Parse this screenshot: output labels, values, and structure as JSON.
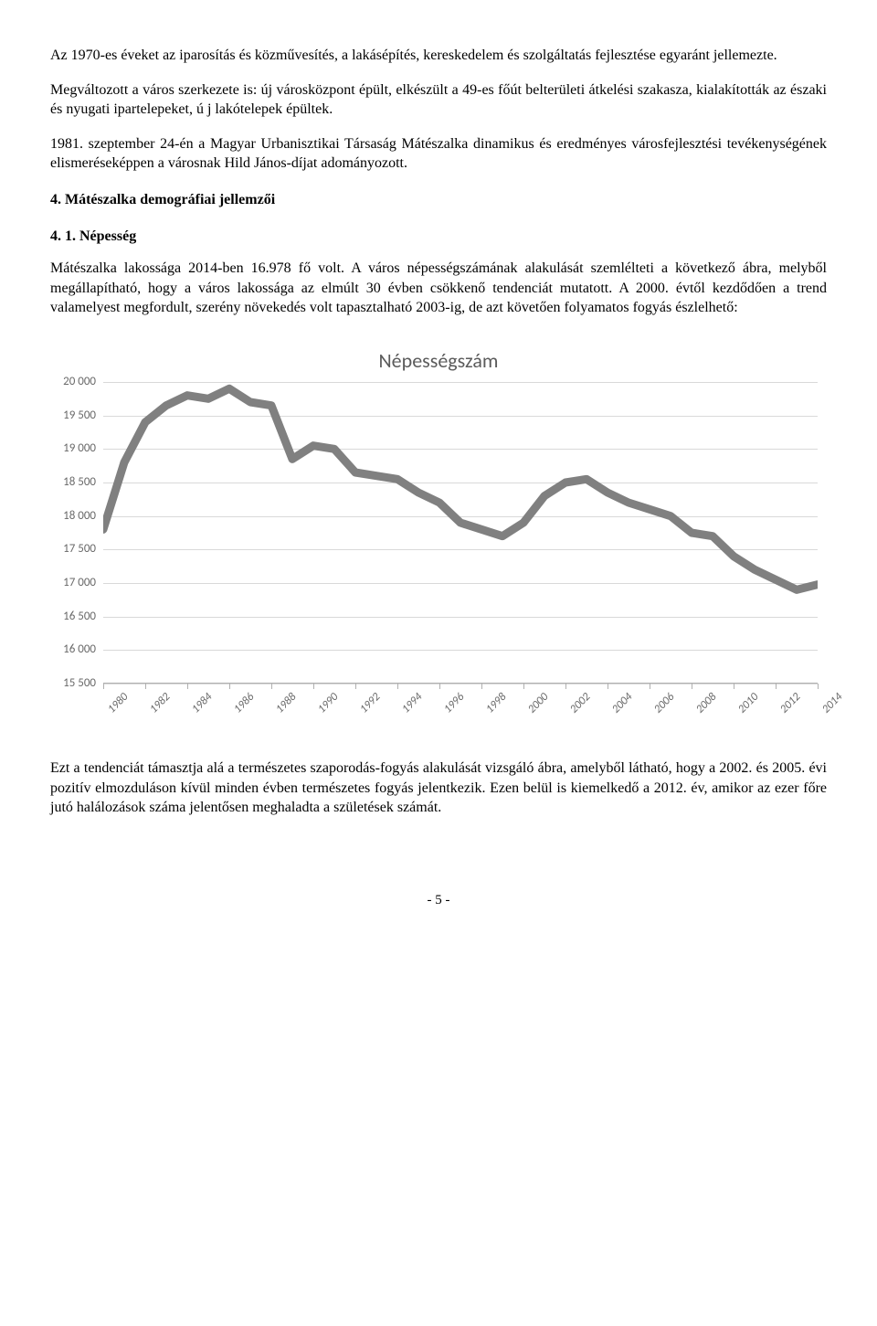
{
  "para1": "Az 1970-es éveket az iparosítás és közművesítés, a lakásépítés, kereskedelem és szolgáltatás fejlesztése egyaránt jellemezte.",
  "para2": "Megváltozott a város szerkezete is: új városközpont épült, elkészült a 49-es főút belterületi átkelési szakasza, kialakították az északi és nyugati ipartelepeket, ú j lakótelepek épültek.",
  "para3": "1981. szeptember 24-én a Magyar Urbanisztikai Társaság Mátészalka dinamikus és eredményes városfejlesztési tevékenységének elismeréseképpen a városnak Hild János-díjat adományozott.",
  "heading1": "4. Mátészalka demográfiai jellemzői",
  "heading2": "4. 1. Népesség",
  "para4": "Mátészalka lakossága 2014-ben 16.978 fő volt. A város népességszámának alakulását szemlélteti a következő ábra, melyből megállapítható, hogy a város lakossága az elmúlt 30 évben csökkenő tendenciát mutatott. A 2000. évtől kezdődően a trend valamelyest megfordult, szerény növekedés volt tapasztalható 2003-ig, de azt követően folyamatos fogyás észlelhető:",
  "para5": "Ezt a tendenciát támasztja alá a természetes szaporodás-fogyás alakulását vizsgáló ábra, amelyből látható, hogy a 2002. és 2005. évi pozitív elmozduláson kívül minden évben természetes fogyás jelentkezik. Ezen belül is kiemelkedő a 2012. év, amikor az ezer főre jutó halálozások száma jelentősen meghaladta a születések számát.",
  "pagenum": "- 5 -",
  "chart": {
    "title": "Népességszám",
    "line_color": "#808080",
    "line_width": 3,
    "grid_color": "#d9d9d9",
    "label_color": "#6a6a6a",
    "background": "#ffffff",
    "ymin": 15500,
    "ymax": 20000,
    "ystep": 500,
    "yticks": [
      15500,
      16000,
      16500,
      17000,
      17500,
      18000,
      18500,
      19000,
      19500,
      20000
    ],
    "ylabels": [
      "15 500",
      "16 000",
      "16 500",
      "17 000",
      "17 500",
      "18 000",
      "18 500",
      "19 000",
      "19 500",
      "20 000"
    ],
    "xticks": [
      1980,
      1982,
      1984,
      1986,
      1988,
      1990,
      1992,
      1994,
      1996,
      1998,
      2000,
      2002,
      2004,
      2006,
      2008,
      2010,
      2012,
      2014
    ],
    "years": [
      1980,
      1981,
      1982,
      1983,
      1984,
      1985,
      1986,
      1987,
      1988,
      1989,
      1990,
      1991,
      1992,
      1993,
      1994,
      1995,
      1996,
      1997,
      1998,
      1999,
      2000,
      2001,
      2002,
      2003,
      2004,
      2005,
      2006,
      2007,
      2008,
      2009,
      2010,
      2011,
      2012,
      2013,
      2014
    ],
    "values": [
      17800,
      18800,
      19400,
      19650,
      19800,
      19750,
      19900,
      19700,
      19650,
      18850,
      19050,
      19000,
      18650,
      18600,
      18550,
      18350,
      18200,
      17900,
      17800,
      17700,
      17900,
      18300,
      18500,
      18550,
      18350,
      18200,
      18100,
      18000,
      17750,
      17700,
      17400,
      17200,
      17050,
      16900,
      16978
    ]
  }
}
